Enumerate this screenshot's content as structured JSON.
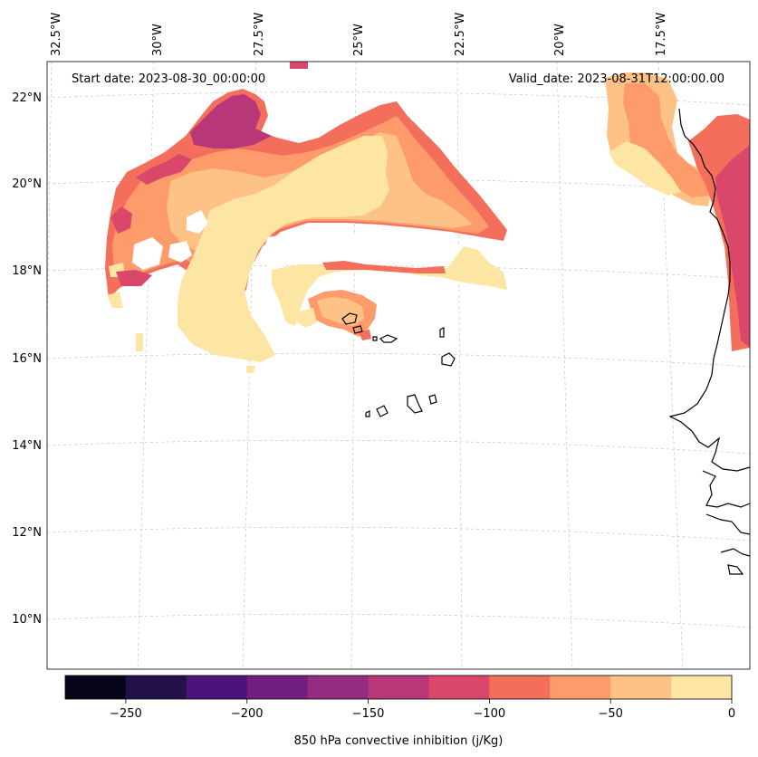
{
  "annotations": {
    "start_date": "Start date: 2023-08-30_00:00:00",
    "valid_date": "Valid_date: 2023-08-31T12:00:00.00"
  },
  "longitude_labels": [
    "32.5°W",
    "30°W",
    "27.5°W",
    "25°W",
    "22.5°W",
    "20°W",
    "17.5°W"
  ],
  "latitude_labels": [
    "22°N",
    "20°N",
    "18°N",
    "16°N",
    "14°N",
    "12°N",
    "10°N"
  ],
  "colorbar": {
    "label": "850 hPa convective inhibition (j/Kg)",
    "ticks": [
      "−250",
      "−200",
      "−150",
      "−100",
      "−50",
      "0"
    ],
    "levels": [
      -275,
      -250,
      -225,
      -200,
      -175,
      -150,
      -125,
      -100,
      -75,
      -50,
      -25,
      0
    ],
    "colors": [
      "#07051a",
      "#221249",
      "#4d127c",
      "#711f81",
      "#942c80",
      "#b73778",
      "#db476a",
      "#f36f5c",
      "#fe9b6a",
      "#fec186",
      "#fde6a4"
    ]
  },
  "colors": {
    "coastline": "#000000",
    "gridline": "#bbbbbb",
    "background": "#ffffff"
  }
}
